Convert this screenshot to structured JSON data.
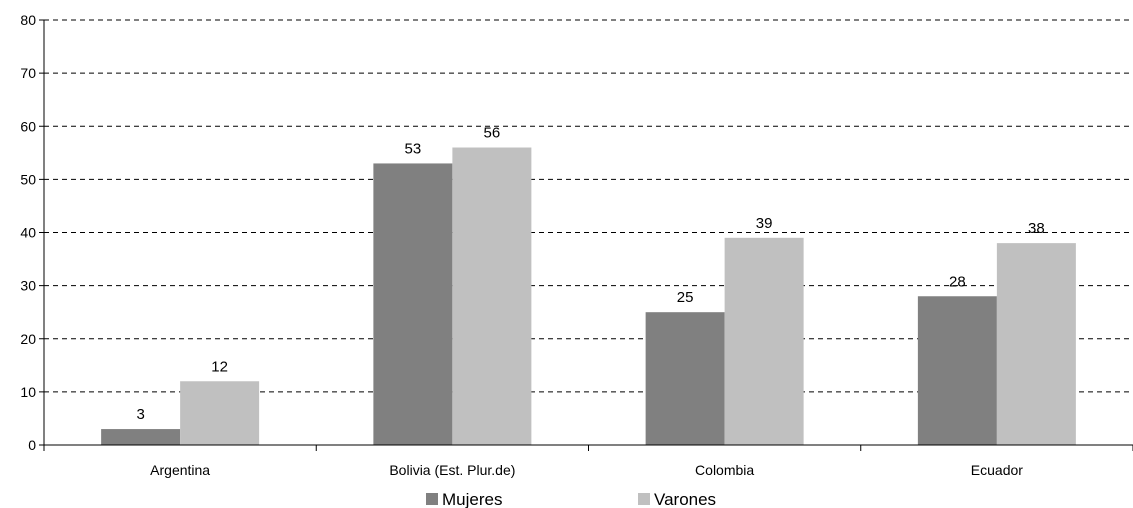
{
  "chart_data": {
    "type": "bar",
    "categories": [
      "Argentina",
      "Bolivia (Est. Plur.de)",
      "Colombia",
      "Ecuador"
    ],
    "series": [
      {
        "name": "Mujeres",
        "values": [
          3,
          53,
          25,
          28
        ],
        "labels": [
          "3",
          "53",
          "25",
          "28"
        ],
        "color": "#808080"
      },
      {
        "name": "Varones",
        "values": [
          12,
          56,
          39,
          38
        ],
        "labels": [
          "12",
          "56",
          "39",
          "38"
        ],
        "color": "#c0c0c0"
      }
    ],
    "ylim": [
      0,
      80
    ],
    "yticks": [
      0,
      10,
      20,
      30,
      40,
      50,
      60,
      70,
      80
    ],
    "grid": true,
    "legend_position": "bottom"
  }
}
